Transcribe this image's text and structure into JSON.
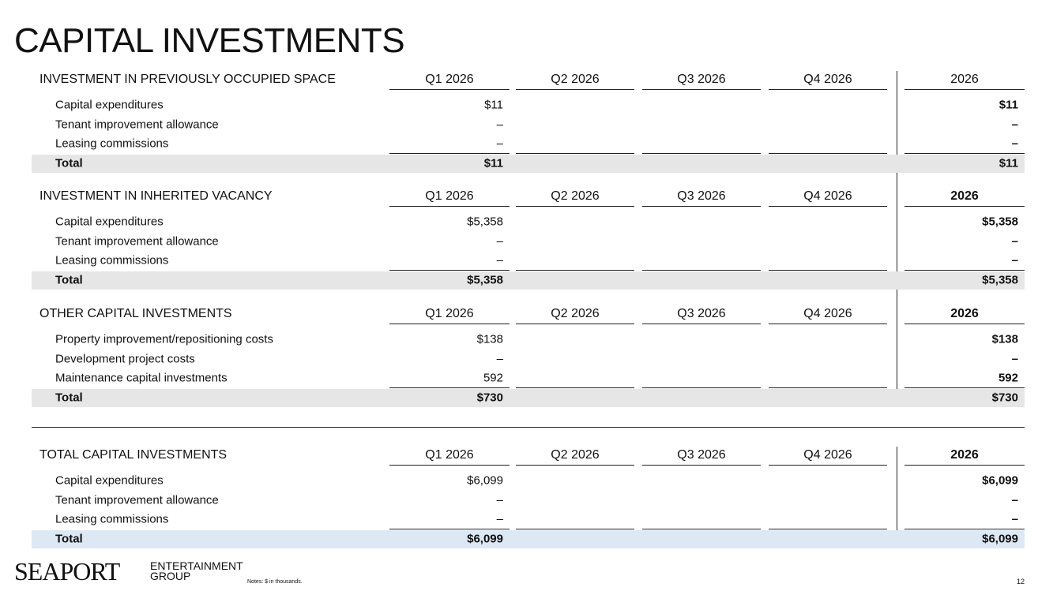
{
  "title": "CAPITAL INVESTMENTS",
  "sections": [
    {
      "heading": "INVESTMENT IN PREVIOUSLY OCCUPIED SPACE",
      "columns": [
        "Q1 2026",
        "Q2 2026",
        "Q3 2026",
        "Q4 2026",
        "2026"
      ],
      "rows": [
        {
          "label": "Capital expenditures",
          "q1": "$11",
          "year": "$11"
        },
        {
          "label": "Tenant improvement allowance",
          "q1": "–",
          "year": "–"
        },
        {
          "label": "Leasing commissions",
          "q1": "–",
          "year": "–"
        }
      ],
      "total": {
        "label": "Total",
        "q1": "$11",
        "year": "$11"
      }
    },
    {
      "heading": "INVESTMENT IN INHERITED VACANCY",
      "columns": [
        "Q1 2026",
        "Q2 2026",
        "Q3 2026",
        "Q4 2026",
        "2026"
      ],
      "rows": [
        {
          "label": "Capital expenditures",
          "q1": "$5,358",
          "year": "$5,358"
        },
        {
          "label": "Tenant improvement allowance",
          "q1": "–",
          "year": "–"
        },
        {
          "label": "Leasing commissions",
          "q1": "–",
          "year": "–"
        }
      ],
      "total": {
        "label": "Total",
        "q1": "$5,358",
        "year": "$5,358"
      }
    },
    {
      "heading": "OTHER CAPITAL INVESTMENTS",
      "columns": [
        "Q1 2026",
        "Q2 2026",
        "Q3 2026",
        "Q4 2026",
        "2026"
      ],
      "rows": [
        {
          "label": "Property improvement/repositioning costs",
          "q1": "$138",
          "year": "$138"
        },
        {
          "label": "Development project costs",
          "q1": "–",
          "year": "–"
        },
        {
          "label": "Maintenance capital investments",
          "q1": "592",
          "year": "592"
        }
      ],
      "total": {
        "label": "Total",
        "q1": "$730",
        "year": "$730"
      }
    },
    {
      "heading": "TOTAL CAPITAL INVESTMENTS",
      "columns": [
        "Q1 2026",
        "Q2 2026",
        "Q3 2026",
        "Q4 2026",
        "2026"
      ],
      "rows": [
        {
          "label": "Capital expenditures",
          "q1": "$6,099",
          "year": "$6,099"
        },
        {
          "label": "Tenant improvement allowance",
          "q1": "–",
          "year": "–"
        },
        {
          "label": "Leasing commissions",
          "q1": "–",
          "year": "–"
        }
      ],
      "total": {
        "label": "Total",
        "q1": "$6,099",
        "year": "$6,099"
      }
    }
  ],
  "footer": {
    "logo": "SEAPORT",
    "logo_line1": "ENTERTAINMENT",
    "logo_line2": "GROUP",
    "note": "Notes: $ in thousands.",
    "page": "12"
  }
}
